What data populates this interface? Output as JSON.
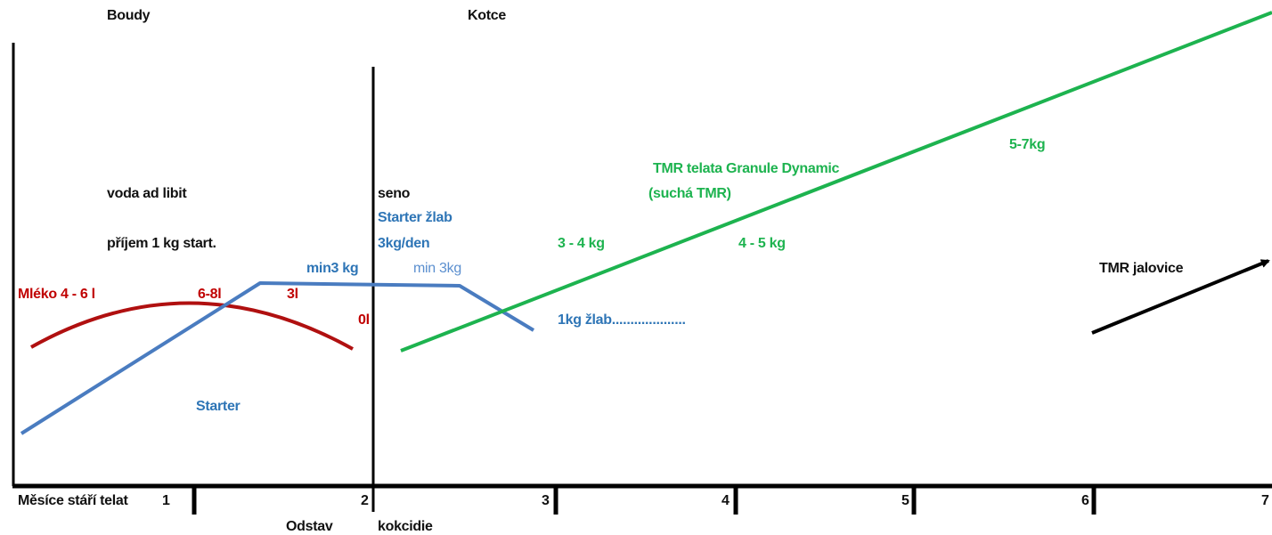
{
  "colors": {
    "axis": "#000000",
    "milk": "#b01010",
    "milk_text": "#c00000",
    "starter": "#4a7cc0",
    "starter_text": "#2e75b6",
    "tmr": "#1db34f",
    "arrow": "#000000"
  },
  "sections": {
    "left": "Boudy",
    "right": "Kotce"
  },
  "axis": {
    "title": "Měsíce stáří telat",
    "ticks": [
      "1",
      "2",
      "3",
      "4",
      "5",
      "6",
      "7"
    ]
  },
  "below_axis": {
    "weaning": "Odstav",
    "coccidia": "kokcidie"
  },
  "notes": {
    "water": "voda ad libit",
    "intake": "příjem 1 kg start.",
    "hay": "seno",
    "starter_trough": "Starter žlab",
    "starter_rate": "3kg/den"
  },
  "milk": {
    "label": "Mléko  4 - 6 l",
    "peak": "6-8l",
    "late": "3l",
    "end": "0l"
  },
  "starter": {
    "label": "Starter",
    "min_left": "min3 kg",
    "min_right": "min 3kg",
    "trough": "1kg žlab...................."
  },
  "tmr_calves": {
    "title": "TMR telata Granule Dynamic",
    "subtitle": "(suchá TMR)",
    "amount_1": "3 - 4 kg",
    "amount_2": "4 - 5 kg",
    "amount_3": "5-7kg"
  },
  "tmr_heifers": {
    "label": "TMR jalovice"
  }
}
